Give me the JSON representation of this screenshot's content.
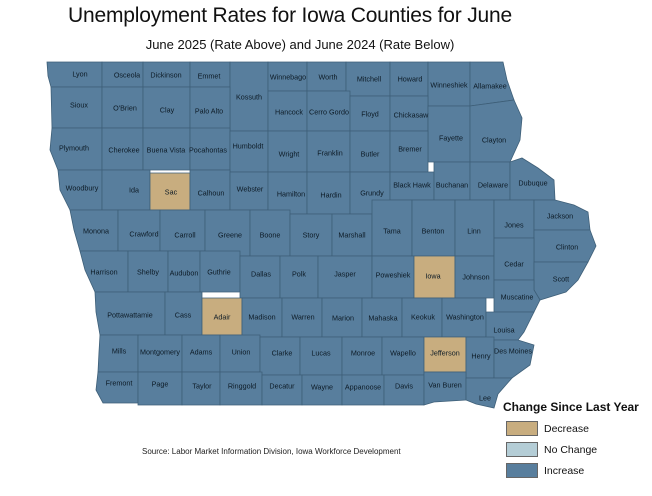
{
  "title": "Unemployment Rates for Iowa Counties for June",
  "subtitle": "June 2025 (Rate Above) and June 2024 (Rate Below)",
  "colors": {
    "decrease": "#c8ad7f",
    "no_change": "#b4cdd6",
    "increase": "#587e9d",
    "border": "#3e5f78"
  },
  "legend": {
    "title": "Change Since Last Year",
    "items": [
      {
        "label": "Decrease",
        "color": "#c8ad7f"
      },
      {
        "label": "No Change",
        "color": "#b4cdd6"
      },
      {
        "label": "Increase",
        "color": "#587e9d"
      }
    ]
  },
  "source": "Source: Labor Market Information Division, Iowa Workforce Development",
  "counties": [
    {
      "name": "Lyon",
      "change": "increase"
    },
    {
      "name": "Osceola",
      "change": "increase"
    },
    {
      "name": "Dickinson",
      "change": "increase"
    },
    {
      "name": "Emmet",
      "change": "increase"
    },
    {
      "name": "Kossuth",
      "change": "increase"
    },
    {
      "name": "Winnebago",
      "change": "increase"
    },
    {
      "name": "Worth",
      "change": "increase"
    },
    {
      "name": "Mitchell",
      "change": "increase"
    },
    {
      "name": "Howard",
      "change": "increase"
    },
    {
      "name": "Winneshiek",
      "change": "increase"
    },
    {
      "name": "Allamakee",
      "change": "increase"
    },
    {
      "name": "Sioux",
      "change": "increase"
    },
    {
      "name": "O'Brien",
      "change": "increase"
    },
    {
      "name": "Clay",
      "change": "increase"
    },
    {
      "name": "Palo Alto",
      "change": "increase"
    },
    {
      "name": "Hancock",
      "change": "increase"
    },
    {
      "name": "Cerro Gordo",
      "change": "increase"
    },
    {
      "name": "Floyd",
      "change": "increase"
    },
    {
      "name": "Chickasaw",
      "change": "increase"
    },
    {
      "name": "Fayette",
      "change": "increase"
    },
    {
      "name": "Clayton",
      "change": "increase"
    },
    {
      "name": "Plymouth",
      "change": "increase"
    },
    {
      "name": "Cherokee",
      "change": "increase"
    },
    {
      "name": "Buena Vista",
      "change": "increase"
    },
    {
      "name": "Pocahontas",
      "change": "increase"
    },
    {
      "name": "Humboldt",
      "change": "increase"
    },
    {
      "name": "Wright",
      "change": "increase"
    },
    {
      "name": "Franklin",
      "change": "increase"
    },
    {
      "name": "Butler",
      "change": "increase"
    },
    {
      "name": "Bremer",
      "change": "increase"
    },
    {
      "name": "Woodbury",
      "change": "increase"
    },
    {
      "name": "Ida",
      "change": "increase"
    },
    {
      "name": "Sac",
      "change": "decrease"
    },
    {
      "name": "Calhoun",
      "change": "increase"
    },
    {
      "name": "Webster",
      "change": "increase"
    },
    {
      "name": "Hamilton",
      "change": "increase"
    },
    {
      "name": "Hardin",
      "change": "increase"
    },
    {
      "name": "Grundy",
      "change": "increase"
    },
    {
      "name": "Black Hawk",
      "change": "increase"
    },
    {
      "name": "Buchanan",
      "change": "increase"
    },
    {
      "name": "Delaware",
      "change": "increase"
    },
    {
      "name": "Dubuque",
      "change": "increase"
    },
    {
      "name": "Monona",
      "change": "increase"
    },
    {
      "name": "Crawford",
      "change": "increase"
    },
    {
      "name": "Carroll",
      "change": "increase"
    },
    {
      "name": "Greene",
      "change": "increase"
    },
    {
      "name": "Boone",
      "change": "increase"
    },
    {
      "name": "Story",
      "change": "increase"
    },
    {
      "name": "Marshall",
      "change": "increase"
    },
    {
      "name": "Tama",
      "change": "increase"
    },
    {
      "name": "Benton",
      "change": "increase"
    },
    {
      "name": "Linn",
      "change": "increase"
    },
    {
      "name": "Jones",
      "change": "increase"
    },
    {
      "name": "Jackson",
      "change": "increase"
    },
    {
      "name": "Clinton",
      "change": "increase"
    },
    {
      "name": "Harrison",
      "change": "increase"
    },
    {
      "name": "Shelby",
      "change": "increase"
    },
    {
      "name": "Audubon",
      "change": "increase"
    },
    {
      "name": "Guthrie",
      "change": "increase"
    },
    {
      "name": "Dallas",
      "change": "increase"
    },
    {
      "name": "Polk",
      "change": "increase"
    },
    {
      "name": "Jasper",
      "change": "increase"
    },
    {
      "name": "Poweshiek",
      "change": "increase"
    },
    {
      "name": "Iowa",
      "change": "decrease"
    },
    {
      "name": "Johnson",
      "change": "increase"
    },
    {
      "name": "Cedar",
      "change": "increase"
    },
    {
      "name": "Scott",
      "change": "increase"
    },
    {
      "name": "Muscatine",
      "change": "increase"
    },
    {
      "name": "Pottawattamie",
      "change": "increase"
    },
    {
      "name": "Cass",
      "change": "increase"
    },
    {
      "name": "Adair",
      "change": "decrease"
    },
    {
      "name": "Madison",
      "change": "increase"
    },
    {
      "name": "Warren",
      "change": "increase"
    },
    {
      "name": "Marion",
      "change": "increase"
    },
    {
      "name": "Mahaska",
      "change": "increase"
    },
    {
      "name": "Keokuk",
      "change": "increase"
    },
    {
      "name": "Washington",
      "change": "increase"
    },
    {
      "name": "Louisa",
      "change": "increase"
    },
    {
      "name": "Mills",
      "change": "increase"
    },
    {
      "name": "Montgomery",
      "change": "increase"
    },
    {
      "name": "Adams",
      "change": "increase"
    },
    {
      "name": "Union",
      "change": "increase"
    },
    {
      "name": "Clarke",
      "change": "increase"
    },
    {
      "name": "Lucas",
      "change": "increase"
    },
    {
      "name": "Monroe",
      "change": "increase"
    },
    {
      "name": "Wapello",
      "change": "increase"
    },
    {
      "name": "Jefferson",
      "change": "decrease"
    },
    {
      "name": "Henry",
      "change": "increase"
    },
    {
      "name": "Des Moines",
      "change": "increase"
    },
    {
      "name": "Fremont",
      "change": "increase"
    },
    {
      "name": "Page",
      "change": "increase"
    },
    {
      "name": "Taylor",
      "change": "increase"
    },
    {
      "name": "Ringgold",
      "change": "increase"
    },
    {
      "name": "Decatur",
      "change": "increase"
    },
    {
      "name": "Wayne",
      "change": "increase"
    },
    {
      "name": "Appanoose",
      "change": "increase"
    },
    {
      "name": "Davis",
      "change": "increase"
    },
    {
      "name": "Van Buren",
      "change": "increase"
    },
    {
      "name": "Lee",
      "change": "increase"
    }
  ]
}
